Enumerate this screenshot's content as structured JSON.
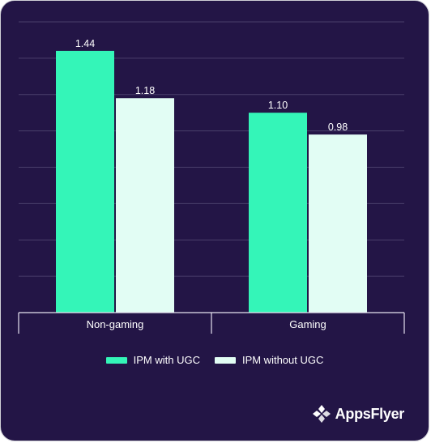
{
  "chart_data": {
    "type": "bar",
    "categories": [
      "Non-gaming",
      "Gaming"
    ],
    "series": [
      {
        "name": "IPM with UGC",
        "values": [
          1.44,
          1.1
        ],
        "color": "#34f5b8"
      },
      {
        "name": "IPM without UGC",
        "values": [
          1.18,
          0.98
        ],
        "color": "#e2fdf4"
      }
    ],
    "value_labels": [
      [
        "1.44",
        "1.10"
      ],
      [
        "1.18",
        "0.98"
      ]
    ],
    "ylim": [
      0,
      1.6
    ],
    "grid": true,
    "legend_position": "bottom",
    "title": "",
    "xlabel": "",
    "ylabel": ""
  },
  "brand": {
    "name": "AppsFlyer",
    "icon": "appsflyer-logo-icon"
  },
  "colors": {
    "background": "#231546",
    "grid": "#4a3f6b",
    "axis": "#e6e3ef"
  }
}
